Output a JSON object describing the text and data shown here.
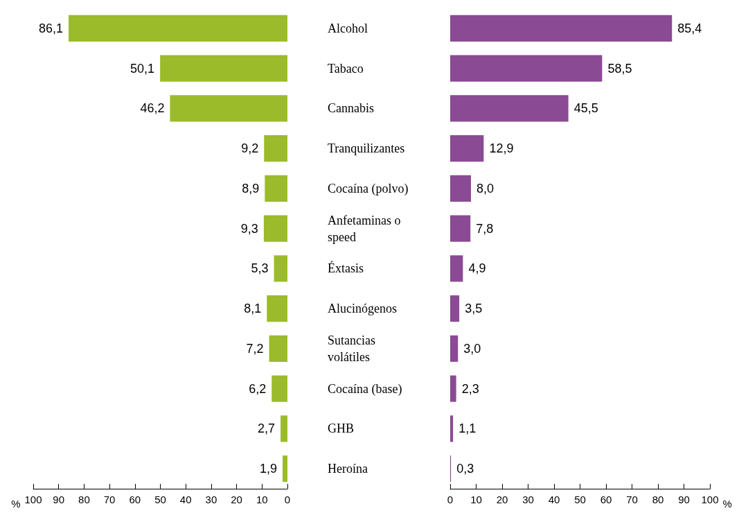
{
  "chart_data": [
    {
      "type": "bar",
      "orientation": "horizontal",
      "categories": [
        "Alcohol",
        "Tabaco",
        "Cannabis",
        "Tranquilizantes",
        "Cocaína (polvo)",
        "Anfetaminas o speed",
        "Éxtasis",
        "Alucinógenos",
        "Sutancias volátiles",
        "Cocaína (base)",
        "GHB",
        "Heroína"
      ],
      "tick_labels": "x",
      "values": [
        86.1,
        50.1,
        46.2,
        9.2,
        8.9,
        9.3,
        5.3,
        8.1,
        7.2,
        6.2,
        2.7,
        1.9
      ],
      "value_labels": [
        "86,1",
        "50,1",
        "46,2",
        "9,2",
        "8,9",
        "9,3",
        "5,3",
        "8,1",
        "7,2",
        "6,2",
        "2,7",
        "1,9"
      ],
      "color": "#9bbb2a",
      "xlim": [
        100,
        0
      ],
      "xticks": [
        100,
        90,
        80,
        70,
        60,
        50,
        40,
        30,
        20,
        10,
        0
      ],
      "xlabel": "%"
    },
    {
      "type": "bar",
      "orientation": "horizontal",
      "categories": [
        "Alcohol",
        "Tabaco",
        "Cannabis",
        "Tranquilizantes",
        "Cocaína (polvo)",
        "Anfetaminas o speed",
        "Éxtasis",
        "Alucinógenos",
        "Sutancias volátiles",
        "Cocaína (base)",
        "GHB",
        "Heroína"
      ],
      "values": [
        85.4,
        58.5,
        45.5,
        12.9,
        8.0,
        7.8,
        4.9,
        3.5,
        3.0,
        2.3,
        1.1,
        0.3
      ],
      "value_labels": [
        "85,4",
        "58,5",
        "45,5",
        "12,9",
        "8,0",
        "7,8",
        "4,9",
        "3,5",
        "3,0",
        "2,3",
        "1,1",
        "0,3"
      ],
      "color": "#8b4a94",
      "xlim": [
        0,
        100
      ],
      "xticks": [
        0,
        10,
        20,
        30,
        40,
        50,
        60,
        70,
        80,
        90,
        100
      ],
      "xlabel": "%"
    }
  ]
}
